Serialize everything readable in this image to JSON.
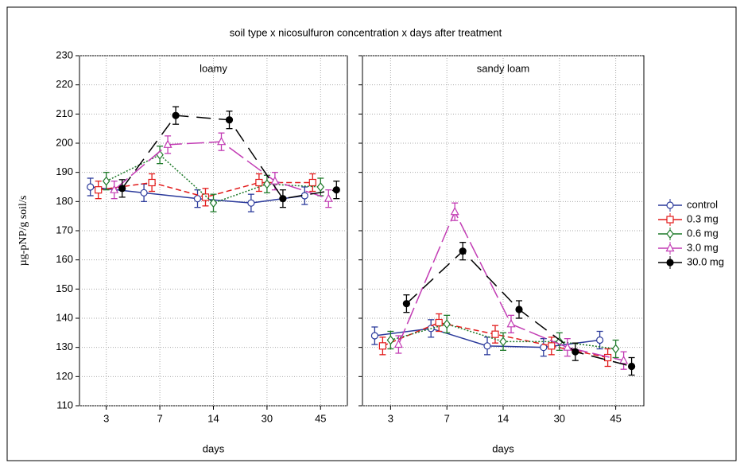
{
  "title": "soil type x  nicosulfuron concentration x days after treatment",
  "ylabel": "µg-pNP/g soil/s",
  "legend": [
    {
      "name": "control",
      "color": "#2b3a9b",
      "marker": "circle",
      "dash": "none"
    },
    {
      "name": "0.3 mg",
      "color": "#e21b1b",
      "marker": "square",
      "dash": "7,4"
    },
    {
      "name": "0.6 mg",
      "color": "#1f7a2a",
      "marker": "diamond",
      "dash": "2,2"
    },
    {
      "name": "3.0 mg",
      "color": "#c23cb4",
      "marker": "triangle",
      "dash": "22,6"
    },
    {
      "name": "30.0 mg",
      "color": "#000000",
      "marker": "filled-circle",
      "dash": "18,10"
    }
  ],
  "chart_data": [
    {
      "type": "line",
      "title": "loamy",
      "xlabel": "days",
      "categories": [
        "3",
        "7",
        "14",
        "30",
        "45"
      ],
      "ylim": [
        110,
        230
      ],
      "yticks": [
        110,
        120,
        130,
        140,
        150,
        160,
        170,
        180,
        190,
        200,
        210,
        220,
        230
      ],
      "grid": true,
      "series": [
        {
          "values": [
            185,
            183,
            181,
            179.5,
            182
          ],
          "errors": [
            3,
            3,
            3,
            3,
            3
          ]
        },
        {
          "values": [
            184,
            186.5,
            181.5,
            186.5,
            186.5
          ],
          "errors": [
            3,
            3,
            3,
            3,
            3
          ]
        },
        {
          "values": [
            187,
            196,
            179.5,
            186,
            185
          ],
          "errors": [
            3,
            3,
            3,
            3,
            3
          ]
        },
        {
          "values": [
            184,
            199.5,
            200.5,
            187,
            181
          ],
          "errors": [
            3,
            3,
            3,
            3,
            3
          ]
        },
        {
          "values": [
            184.5,
            209.5,
            208,
            181,
            184
          ],
          "errors": [
            3,
            3,
            3,
            3,
            3
          ]
        }
      ]
    },
    {
      "type": "line",
      "title": "sandy loam",
      "xlabel": "days",
      "categories": [
        "3",
        "7",
        "14",
        "30",
        "45"
      ],
      "ylim": [
        110,
        230
      ],
      "grid": true,
      "series": [
        {
          "values": [
            134,
            136.5,
            130.5,
            130,
            132.5
          ],
          "errors": [
            3,
            3,
            3,
            3,
            3
          ]
        },
        {
          "values": [
            130.5,
            138.5,
            134.5,
            130.5,
            126.5
          ],
          "errors": [
            3,
            3,
            3,
            3,
            3
          ]
        },
        {
          "values": [
            132.5,
            138,
            132,
            132,
            129.5
          ],
          "errors": [
            3,
            3,
            3,
            3,
            3
          ]
        },
        {
          "values": [
            131,
            176.5,
            138,
            130,
            125.5
          ],
          "errors": [
            3,
            3,
            3,
            3,
            3
          ]
        },
        {
          "values": [
            145,
            163,
            143,
            128.5,
            123.5
          ],
          "errors": [
            3,
            3,
            3,
            3,
            3
          ]
        }
      ]
    }
  ]
}
